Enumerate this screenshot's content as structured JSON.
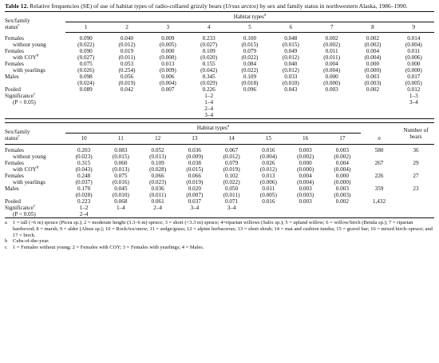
{
  "caption": {
    "label": "Table 12.",
    "text_a": " Relative frequencies (SE) of use of habitat types of radio-collared grizzly bears (",
    "species": "Ursus arctos",
    "text_b": ") by sex and family status in northwestern Alaska, 1986–1990."
  },
  "t1": {
    "stub_head_1": "Sex/family",
    "stub_head_2": "status",
    "stub_head_mark": "c",
    "group_title": "Habitat types",
    "group_mark": "a",
    "cols": [
      "1",
      "2",
      "3",
      "4",
      "5",
      "6",
      "7",
      "8",
      "9"
    ],
    "rows": [
      {
        "l1": "Females",
        "l2": "without young",
        "mark": "",
        "vals": [
          "0.090",
          "0.040",
          "0.009",
          "0.233",
          "0.100",
          "0.048",
          "0.002",
          "0.002",
          "0.014"
        ],
        "se": [
          "(0.022)",
          "(0.012)",
          "(0.005)",
          "(0.027)",
          "(0.015)",
          "(0.015)",
          "(0.002)",
          "(0.002)",
          "(0.004)"
        ]
      },
      {
        "l1": "Females",
        "l2": "with COY",
        "mark": "b",
        "vals": [
          "0.090",
          "0.019",
          "0.000",
          "0.109",
          "0.079",
          "0.049",
          "0.011",
          "0.004",
          "0.011"
        ],
        "se": [
          "(0.027)",
          "(0.011)",
          "(0.000)",
          "(0.020)",
          "(0.022)",
          "(0.012)",
          "(0.011)",
          "(0.004)",
          "(0.006)"
        ]
      },
      {
        "l1": "Females",
        "l2": "with yearlings",
        "mark": "",
        "vals": [
          "0.075",
          "0.053",
          "0.013",
          "0.155",
          "0.084",
          "0.040",
          "0.004",
          "0.000",
          "0.000"
        ],
        "se": [
          "(0.026)",
          "(0.254)",
          "(0.009)",
          "(0.042)",
          "(0.022)",
          "(0.012)",
          "(0.004)",
          "(0.000)",
          "(0.000)"
        ]
      },
      {
        "l1": "Males",
        "l2": "",
        "mark": "",
        "vals": [
          "0.098",
          "0.056",
          "0.006",
          "0.345",
          "0.109",
          "0.033",
          "0.000",
          "0.003",
          "0.017"
        ],
        "se": [
          "(0.024)",
          "(0.019)",
          "(0.004)",
          "(0.029)",
          "(0.018)",
          "(0.010)",
          "(0.000)",
          "(0.003)",
          "(0.005)"
        ]
      }
    ],
    "pooled_label": "Pooled",
    "pooled": [
      "0.089",
      "0.042",
      "0.007",
      "0.226",
      "0.096",
      "0.043",
      "0.003",
      "0.002",
      "0.012"
    ],
    "sig_label": "Significance",
    "sig_mark": "c",
    "sig_p": "(P < 0.05)",
    "sig_col4": [
      "1–2",
      "1–4",
      "2–4",
      "3–4"
    ],
    "sig_col9": [
      "1–3",
      "3–4"
    ]
  },
  "t2": {
    "stub_head_1": "Sex/family",
    "stub_head_2": "status",
    "stub_head_mark": "c",
    "group_title": "Habitat types",
    "group_mark": "a",
    "cols": [
      "10",
      "11",
      "12",
      "13",
      "14",
      "15",
      "16",
      "17"
    ],
    "n_head": "n",
    "bears_head_1": "Number of",
    "bears_head_2": "bears",
    "rows": [
      {
        "l1": "Females",
        "l2": "without young",
        "mark": "",
        "vals": [
          "0.203",
          "0.083",
          "0.052",
          "0.036",
          "0.067",
          "0.016",
          "0.003",
          "0.003"
        ],
        "se": [
          "(0.023)",
          "(0.015)",
          "(0.013)",
          "(0.009)",
          "(0.012)",
          "(0.004)",
          "(0.002)",
          "(0.002)"
        ],
        "n": "580",
        "bears": "36"
      },
      {
        "l1": "Females",
        "l2": "with COY",
        "mark": "b",
        "vals": [
          "0.315",
          "0.060",
          "0.109",
          "0.038",
          "0.079",
          "0.026",
          "0.000",
          "0.004"
        ],
        "se": [
          "(0.043)",
          "(0.013)",
          "(0.028)",
          "(0.015)",
          "(0.019)",
          "(0.012)",
          "(0.000)",
          "(0.004)"
        ],
        "n": "267",
        "bears": "29"
      },
      {
        "l1": "Females",
        "l2": "with yearlings",
        "mark": "",
        "vals": [
          "0.248",
          "0.075",
          "0.066",
          "0.066",
          "0.102",
          "0.013",
          "0.004",
          "0.000"
        ],
        "se": [
          "(0.037)",
          "(0.016)",
          "(0.023)",
          "(0.019)",
          "(0.022)",
          "(0.006)",
          "(0.004)",
          "(0.000)"
        ],
        "n": "226",
        "bears": "27"
      },
      {
        "l1": "Males",
        "l2": "",
        "mark": "",
        "vals": [
          "0.170",
          "0.045",
          "0.036",
          "0.020",
          "0.050",
          "0.011",
          "0.003",
          "0.003"
        ],
        "se": [
          "(0.028)",
          "(0.010)",
          "(0.011)",
          "(0.007)",
          "(0.011)",
          "(0.005)",
          "(0.003)",
          "(0.003)"
        ],
        "n": "359",
        "bears": "23"
      }
    ],
    "pooled_label": "Pooled",
    "pooled": [
      "0.223",
      "0.068",
      "0.061",
      "0.037",
      "0.071",
      "0.016",
      "0.003",
      "0.002"
    ],
    "pooled_n": "1,432",
    "sig_label": "Significance",
    "sig_mark": "c",
    "sig_p": "(P < 0.05)",
    "sig_col10": [
      "1–2",
      "2–4"
    ],
    "sig_col11": [
      "1–4"
    ],
    "sig_col12": [
      "2–4"
    ],
    "sig_col13": [
      "3–4"
    ],
    "sig_col14": [
      "3–4"
    ]
  },
  "footnotes": [
    {
      "mark": "a",
      "text": "1 = tall (>6 m) spruce (Picea sp.); 2 = moderate height (3.3–6 m) spruce; 3 = short (<3.3 m) spruce; 4=riparian willows (Salix sp.); 5 = upland willow; 6 = willow/birch (Betula sp.); 7 = riparian hardwood; 8 = marsh; 9 = alder (Alnus sp.); 10 = Rock/ice/snow; 11 = sedge/grass; 12 = alpine herbaceous; 13 = short shrub; 14 = mat and cushion tundra; 15 = gravel bar; 16 = mixed birch–spruce; and 17 = birch."
    },
    {
      "mark": "b",
      "text": "Cubs-of-the-year."
    },
    {
      "mark": "c",
      "text": "1 = Females without young; 2 = Females with COY; 3 = Females with yearlings; 4 = Males."
    }
  ]
}
